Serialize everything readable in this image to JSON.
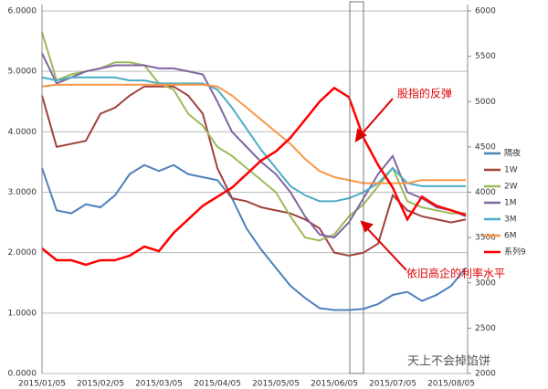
{
  "chart_data": {
    "type": "line",
    "categories": [
      "2015/01/05",
      null,
      null,
      null,
      "2015/02/05",
      null,
      null,
      null,
      "2015/03/05",
      null,
      null,
      null,
      "2015/04/05",
      null,
      null,
      null,
      "2015/05/05",
      null,
      null,
      null,
      "2015/06/05",
      null,
      null,
      null,
      "2015/07/05",
      null,
      null,
      null,
      "2015/08/05",
      null
    ],
    "ylim": [
      0,
      6
    ],
    "yticks": [
      {
        "value": 0,
        "label": "0.0000"
      },
      {
        "value": 1,
        "label": "1.0000"
      },
      {
        "value": 2,
        "label": "2.0000"
      },
      {
        "value": 3,
        "label": "3.0000"
      },
      {
        "value": 4,
        "label": "4.0000"
      },
      {
        "value": 5,
        "label": "5.0000"
      },
      {
        "value": 6,
        "label": "6.0000"
      }
    ],
    "y2lim": [
      2000,
      6000
    ],
    "y2ticks": [
      2000,
      2500,
      3000,
      3500,
      4000,
      4500,
      5000,
      5500,
      6000
    ],
    "grid": true,
    "legend": "right",
    "series": [
      {
        "name": "隔夜",
        "color": "#4f81bd",
        "values": [
          3.4,
          2.7,
          2.65,
          2.8,
          2.75,
          2.95,
          3.3,
          3.45,
          3.35,
          3.45,
          3.3,
          3.25,
          3.2,
          2.9,
          2.4,
          2.05,
          1.75,
          1.45,
          1.25,
          1.08,
          1.05,
          1.05,
          1.07,
          1.15,
          1.3,
          1.35,
          1.2,
          1.3,
          1.45,
          1.75
        ]
      },
      {
        "name": "1W",
        "color": "#a0403c",
        "values": [
          4.6,
          3.75,
          3.8,
          3.85,
          4.3,
          4.4,
          4.6,
          4.75,
          4.75,
          4.75,
          4.6,
          4.3,
          3.4,
          2.9,
          2.85,
          2.75,
          2.7,
          2.65,
          2.55,
          2.4,
          2.0,
          1.95,
          2.0,
          2.15,
          2.95,
          2.7,
          2.6,
          2.55,
          2.5,
          2.55
        ]
      },
      {
        "name": "2W",
        "color": "#9bbb59",
        "values": [
          5.65,
          4.85,
          4.95,
          5.0,
          5.05,
          5.15,
          5.15,
          5.1,
          4.8,
          4.7,
          4.3,
          4.1,
          3.75,
          3.6,
          3.4,
          3.2,
          3.0,
          2.6,
          2.25,
          2.2,
          2.3,
          2.6,
          2.8,
          3.1,
          3.4,
          2.85,
          2.75,
          2.7,
          2.65,
          2.65
        ]
      },
      {
        "name": "1M",
        "color": "#8064a2",
        "values": [
          5.3,
          4.8,
          4.9,
          5.0,
          5.05,
          5.1,
          5.1,
          5.1,
          5.05,
          5.05,
          5.0,
          4.95,
          4.5,
          4.0,
          3.75,
          3.5,
          3.3,
          3.0,
          2.6,
          2.3,
          2.25,
          2.5,
          2.9,
          3.3,
          3.6,
          3.0,
          2.9,
          2.75,
          2.7,
          2.6
        ]
      },
      {
        "name": "3M",
        "color": "#4bacc6",
        "values": [
          4.9,
          4.85,
          4.9,
          4.9,
          4.9,
          4.9,
          4.85,
          4.85,
          4.8,
          4.8,
          4.8,
          4.8,
          4.7,
          4.4,
          4.05,
          3.7,
          3.4,
          3.1,
          2.95,
          2.85,
          2.85,
          2.9,
          3.0,
          3.15,
          3.4,
          3.15,
          3.1,
          3.1,
          3.1,
          3.1
        ]
      },
      {
        "name": "6M",
        "color": "#f79646",
        "values": [
          4.75,
          4.78,
          4.78,
          4.78,
          4.78,
          4.78,
          4.78,
          4.78,
          4.78,
          4.78,
          4.78,
          4.78,
          4.75,
          4.6,
          4.4,
          4.2,
          4.0,
          3.8,
          3.55,
          3.35,
          3.25,
          3.2,
          3.15,
          3.15,
          3.15,
          3.15,
          3.2,
          3.2,
          3.2,
          3.2
        ]
      },
      {
        "name": "系列9",
        "color": "#ff0000",
        "axis": "y2",
        "values": [
          3380,
          3250,
          3250,
          3200,
          3250,
          3250,
          3300,
          3400,
          3350,
          3550,
          3700,
          3850,
          3950,
          4050,
          4200,
          4350,
          4450,
          4600,
          4800,
          5000,
          5150,
          5050,
          4600,
          4300,
          4050,
          3700,
          3950,
          3850,
          3800,
          3750
        ]
      }
    ],
    "annotations": [
      "股指的反弹",
      "依旧高企的利率水平"
    ],
    "watermark": "天上不会掉馅饼"
  }
}
